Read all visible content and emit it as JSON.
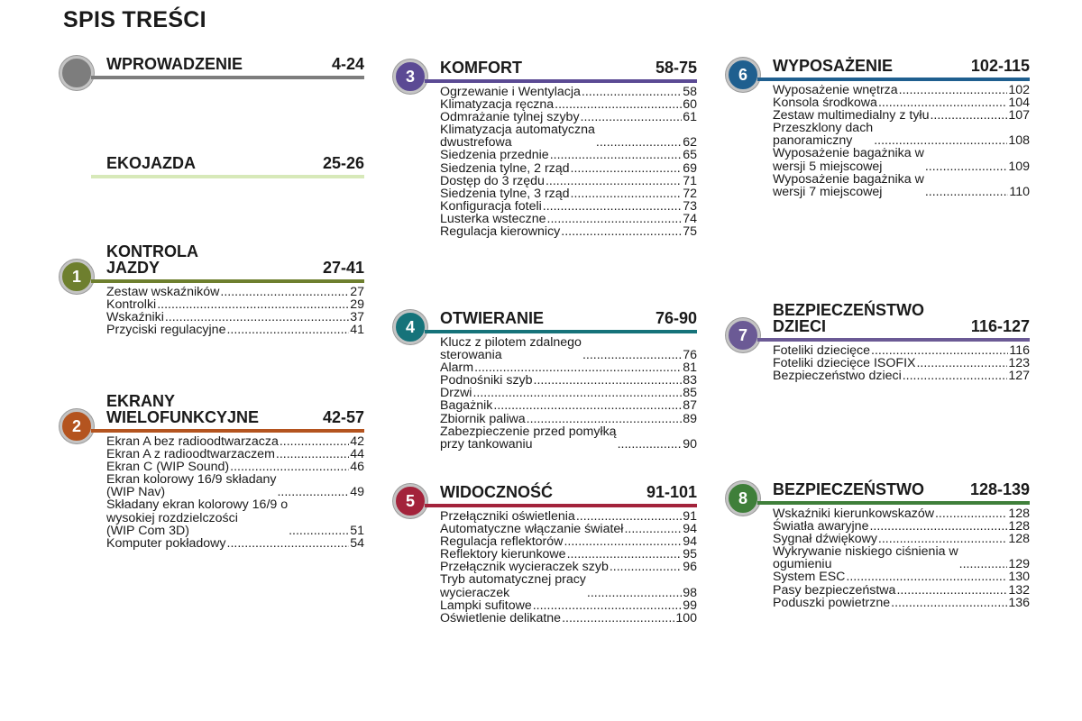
{
  "title": "SPIS TREŚCI",
  "sections": [
    {
      "id": "wprowadzenie",
      "number": "",
      "name": "WPROWADZENIE",
      "pages": "4-24",
      "color": "#7d7d7d",
      "items": []
    },
    {
      "id": "ekojazda",
      "number": "",
      "name": "EKOJAZDA",
      "pages": "25-26",
      "color": "#d7e9b9",
      "items": []
    },
    {
      "id": "kontrola-jazdy",
      "number": "1",
      "name": "KONTROLA\nJAZDY",
      "pages": "27-41",
      "color": "#6e7f2e",
      "items": [
        {
          "text": "Zestaw wskaźników",
          "page": "27"
        },
        {
          "text": "Kontrolki",
          "page": "29"
        },
        {
          "text": "Wskaźniki",
          "page": "37"
        },
        {
          "text": "Przyciski regulacyjne",
          "page": "41"
        }
      ]
    },
    {
      "id": "ekrany",
      "number": "2",
      "name": "EKRANY\nWIELOFUNKCYJNE",
      "pages": "42-57",
      "color": "#b4541f",
      "items": [
        {
          "text": "Ekran A bez radioodtwarzacza",
          "page": "42"
        },
        {
          "text": "Ekran A z radioodtwarzaczem",
          "page": "44"
        },
        {
          "text": "Ekran C (WIP Sound)",
          "page": "46"
        },
        {
          "text": "Ekran kolorowy 16/9 składany\n   (WIP Nav)",
          "page": "49"
        },
        {
          "text": "Składany ekran kolorowy 16/9 o\n   wysokiej rozdzielczości\n   (WIP Com 3D)",
          "page": "51"
        },
        {
          "text": "Komputer pokładowy",
          "page": "54"
        }
      ]
    },
    {
      "id": "komfort",
      "number": "3",
      "name": "KOMFORT",
      "pages": "58-75",
      "color": "#5b4a94",
      "items": [
        {
          "text": "Ogrzewanie i Wentylacja",
          "page": "58"
        },
        {
          "text": "Klimatyzacja ręczna",
          "page": "60"
        },
        {
          "text": "Odmrażanie tylnej szyby",
          "page": "61"
        },
        {
          "text": "Klimatyzacja automatyczna\n   dwustrefowa",
          "page": "62"
        },
        {
          "text": "Siedzenia przednie",
          "page": "65"
        },
        {
          "text": "Siedzenia tylne, 2 rząd",
          "page": "69"
        },
        {
          "text": "Dostęp do 3 rzędu",
          "page": "71"
        },
        {
          "text": "Siedzenia tylne, 3 rząd",
          "page": "72"
        },
        {
          "text": "Konfiguracja foteli",
          "page": "73"
        },
        {
          "text": "Lusterka wsteczne",
          "page": "74"
        },
        {
          "text": "Regulacja kierownicy",
          "page": "75"
        }
      ]
    },
    {
      "id": "otwieranie",
      "number": "4",
      "name": "OTWIERANIE",
      "pages": "76-90",
      "color": "#16737a",
      "items": [
        {
          "text": "Klucz z pilotem zdalnego\n   sterowania",
          "page": "76"
        },
        {
          "text": "Alarm",
          "page": "81"
        },
        {
          "text": "Podnośniki szyb",
          "page": "83"
        },
        {
          "text": "Drzwi",
          "page": "85"
        },
        {
          "text": "Bagażnik",
          "page": "87"
        },
        {
          "text": "Zbiornik paliwa",
          "page": "89"
        },
        {
          "text": "Zabezpieczenie przed pomyłką\n   przy tankowaniu",
          "page": "90"
        }
      ]
    },
    {
      "id": "widocznosc",
      "number": "5",
      "name": "WIDOCZNOŚĆ",
      "pages": "91-101",
      "color": "#a3233b",
      "items": [
        {
          "text": "Przełączniki oświetlenia",
          "page": "91"
        },
        {
          "text": "Automatyczne włączanie świateł",
          "page": "94"
        },
        {
          "text": "Regulacja reflektorów",
          "page": "94"
        },
        {
          "text": "Reflektory kierunkowe",
          "page": "95"
        },
        {
          "text": "Przełącznik wycieraczek szyb",
          "page": "96"
        },
        {
          "text": "Tryb automatycznej pracy\n   wycieraczek",
          "page": "98"
        },
        {
          "text": "Lampki sufitowe",
          "page": "99"
        },
        {
          "text": "Oświetlenie delikatne",
          "page": "100"
        }
      ]
    },
    {
      "id": "wyposazenie",
      "number": "6",
      "name": "WYPOSAŻENIE",
      "pages": "102-115",
      "color": "#1f5f8f",
      "items": [
        {
          "text": "Wyposażenie wnętrza",
          "page": "102"
        },
        {
          "text": "Konsola środkowa",
          "page": "104"
        },
        {
          "text": "Zestaw multimedialny z tyłu",
          "page": "107"
        },
        {
          "text": "Przeszklony dach\n   panoramiczny",
          "page": "108"
        },
        {
          "text": "Wyposażenie bagażnika w\n   wersji 5 miejscowej",
          "page": "109"
        },
        {
          "text": "Wyposażenie bagażnika w\n   wersji 7 miejscowej",
          "page": "110"
        }
      ]
    },
    {
      "id": "bezpieczenstwo-dzieci",
      "number": "7",
      "name": "BEZPIECZEŃSTWO\nDZIECI",
      "pages": "116-127",
      "color": "#6b5a95",
      "items": [
        {
          "text": "Foteliki dziecięce",
          "page": "116"
        },
        {
          "text": "Foteliki dziecięce ISOFIX",
          "page": "123"
        },
        {
          "text": "Bezpieczeństwo dzieci",
          "page": "127"
        }
      ]
    },
    {
      "id": "bezpieczenstwo",
      "number": "8",
      "name": "BEZPIECZEŃSTWO",
      "pages": "128-139",
      "color": "#3f7f3a",
      "items": [
        {
          "text": "Wskaźniki kierunkowskazów",
          "page": "128"
        },
        {
          "text": "Światła awaryjne",
          "page": "128"
        },
        {
          "text": "Sygnał dźwiękowy",
          "page": "128"
        },
        {
          "text": "Wykrywanie niskiego ciśnienia w\n   ogumieniu",
          "page": "129"
        },
        {
          "text": "System ESC",
          "page": "130"
        },
        {
          "text": "Pasy bezpieczeństwa",
          "page": "132"
        },
        {
          "text": "Poduszki powietrzne",
          "page": "136"
        }
      ]
    }
  ]
}
